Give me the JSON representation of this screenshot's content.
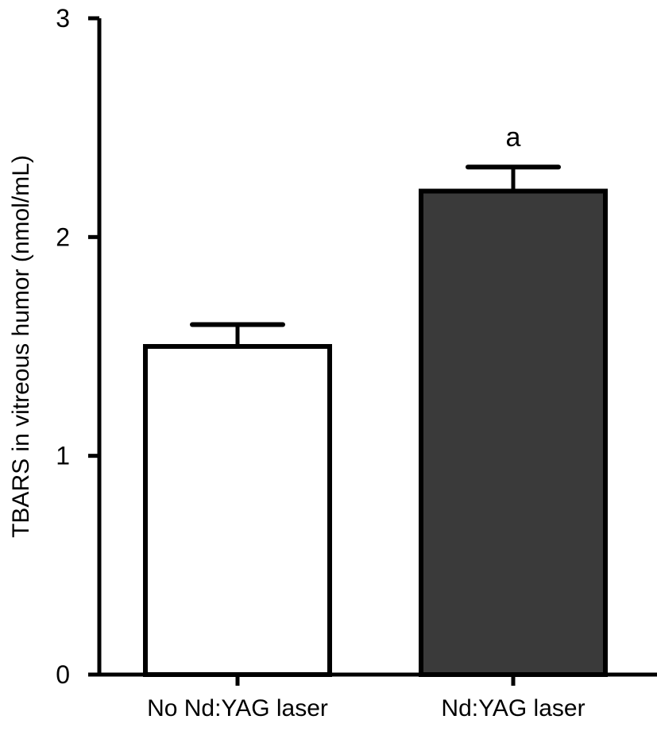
{
  "chart_data": {
    "type": "bar",
    "categories": [
      "No Nd:YAG laser",
      "Nd:YAG laser"
    ],
    "values": [
      1.5,
      2.21
    ],
    "errors": [
      0.1,
      0.11
    ],
    "bar_colors": [
      "#ffffff",
      "#3a3a3a"
    ],
    "annotations": [
      "",
      "a"
    ],
    "ylabel": "TBARS in vitreous humor (nmol/mL)",
    "xlabel": "",
    "ylim": [
      0,
      3
    ],
    "yticks": [
      0,
      1,
      2,
      3
    ],
    "grid": false,
    "legend": "none"
  }
}
